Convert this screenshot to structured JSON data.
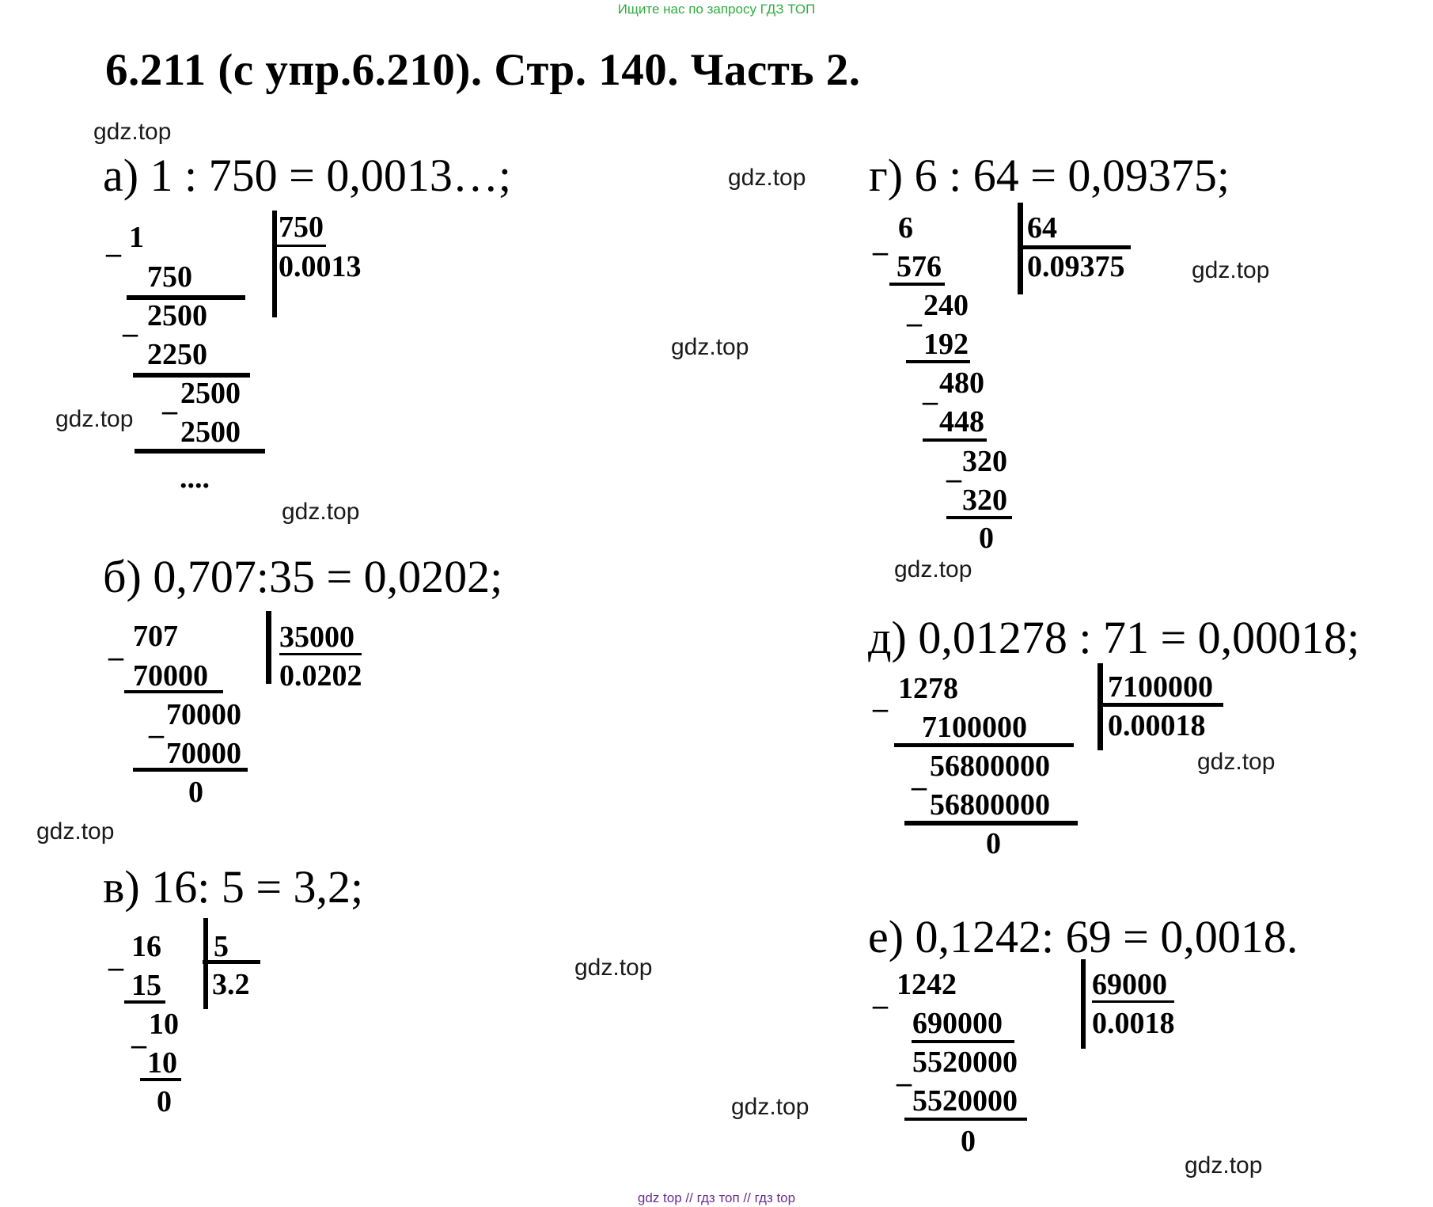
{
  "top_note": "Ищите нас по запросу ГДЗ ТОП",
  "title": "6.211 (с упр.6.210). Стр. 140. Часть 2.",
  "watermark": "gdz.top",
  "footer": "gdz top  //  гдз топ  //  гдз top",
  "problems": {
    "a": {
      "header": "а) 1 : 750 = 0,0013…;",
      "dividend": "1",
      "divisor": "750",
      "quotient": "0.0013",
      "steps": [
        "750",
        "2500",
        "2250",
        "2500",
        "2500"
      ],
      "ellipsis": "...."
    },
    "b": {
      "header": "б) 0,707:35 = 0,0202;",
      "dividend": "707",
      "divisor": "35000",
      "quotient": "0.0202",
      "steps": [
        "70000",
        "70000",
        "70000"
      ],
      "remainder": "0"
    },
    "v": {
      "header": "в) 16: 5 = 3,2;",
      "dividend": "16",
      "divisor": "5",
      "quotient": "3.2",
      "steps": [
        "15",
        "10",
        "10"
      ],
      "remainder": "0"
    },
    "g": {
      "header": "г) 6 : 64 = 0,09375;",
      "dividend": "6",
      "divisor": "64",
      "quotient": "0.09375",
      "steps": [
        "576",
        "240",
        "192",
        "480",
        "448",
        "320",
        "320"
      ],
      "remainder": "0"
    },
    "d": {
      "header": "д) 0,01278 : 71 = 0,00018;",
      "dividend": "1278",
      "divisor": "7100000",
      "quotient": "0.00018",
      "steps": [
        "7100000",
        "56800000",
        "56800000"
      ],
      "remainder": "0"
    },
    "e": {
      "header": "е) 0,1242: 69 = 0,0018.",
      "dividend": "1242",
      "divisor": "69000",
      "quotient": "0.0018",
      "steps": [
        "690000",
        "5520000",
        "5520000"
      ],
      "remainder": "0"
    }
  }
}
